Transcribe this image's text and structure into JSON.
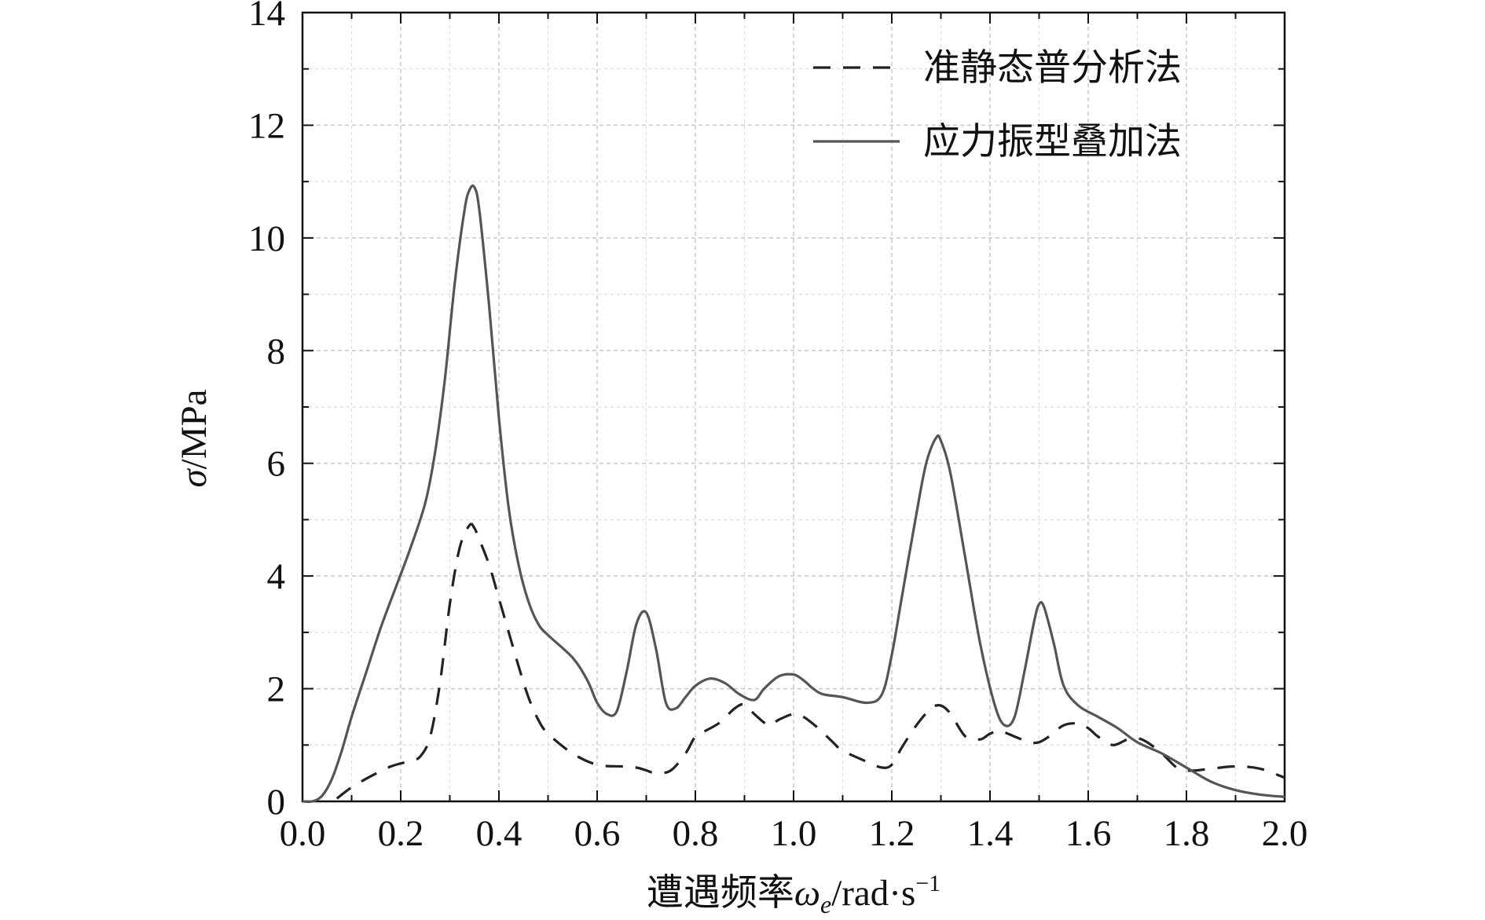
{
  "chart_data": {
    "type": "line",
    "xlabel": {
      "main": "遭遇频率",
      "symbol": "ω",
      "subscript": "e",
      "unit": "/rad·s",
      "unit_exp": "−1"
    },
    "ylabel": {
      "symbol": "σ",
      "unit": "/MPa"
    },
    "xlim": [
      0.0,
      2.0
    ],
    "ylim": [
      0,
      14
    ],
    "x_ticks": [
      "0.0",
      "0.2",
      "0.4",
      "0.6",
      "0.8",
      "1.0",
      "1.2",
      "1.4",
      "1.6",
      "1.8",
      "2.0"
    ],
    "y_ticks": [
      "0",
      "2",
      "4",
      "6",
      "8",
      "10",
      "12",
      "14"
    ],
    "grid": true,
    "legend_position": "top-right",
    "series": [
      {
        "name": "准静态普分析法",
        "style": "dashed",
        "color": "#222222",
        "x": [
          0.07,
          0.1,
          0.14,
          0.18,
          0.22,
          0.24,
          0.26,
          0.28,
          0.3,
          0.32,
          0.34,
          0.35,
          0.36,
          0.38,
          0.4,
          0.42,
          0.44,
          0.46,
          0.48,
          0.5,
          0.55,
          0.6,
          0.65,
          0.68,
          0.7,
          0.72,
          0.75,
          0.78,
          0.8,
          0.82,
          0.85,
          0.88,
          0.9,
          0.92,
          0.95,
          0.97,
          1.0,
          1.02,
          1.05,
          1.08,
          1.1,
          1.15,
          1.18,
          1.2,
          1.22,
          1.25,
          1.28,
          1.3,
          1.32,
          1.35,
          1.38,
          1.4,
          1.42,
          1.45,
          1.48,
          1.5,
          1.52,
          1.55,
          1.58,
          1.6,
          1.62,
          1.65,
          1.68,
          1.7,
          1.72,
          1.75,
          1.78,
          1.8,
          1.82,
          1.85,
          1.9,
          1.95,
          2.0
        ],
        "y": [
          0.05,
          0.25,
          0.45,
          0.62,
          0.72,
          0.8,
          1.15,
          2.1,
          3.5,
          4.5,
          4.9,
          4.85,
          4.65,
          4.2,
          3.6,
          3.0,
          2.4,
          1.85,
          1.45,
          1.2,
          0.85,
          0.65,
          0.62,
          0.6,
          0.55,
          0.5,
          0.55,
          0.85,
          1.15,
          1.25,
          1.4,
          1.65,
          1.72,
          1.55,
          1.35,
          1.45,
          1.55,
          1.5,
          1.3,
          1.05,
          0.9,
          0.7,
          0.6,
          0.65,
          0.95,
          1.35,
          1.65,
          1.7,
          1.55,
          1.15,
          1.1,
          1.2,
          1.25,
          1.15,
          1.05,
          1.05,
          1.15,
          1.35,
          1.38,
          1.3,
          1.15,
          1.0,
          1.1,
          1.12,
          1.05,
          0.85,
          0.6,
          0.55,
          0.55,
          0.58,
          0.62,
          0.58,
          0.42
        ]
      },
      {
        "name": "应力振型叠加法",
        "style": "solid",
        "color": "#555555",
        "x": [
          0.0,
          0.02,
          0.04,
          0.06,
          0.08,
          0.1,
          0.13,
          0.16,
          0.19,
          0.22,
          0.25,
          0.27,
          0.29,
          0.31,
          0.33,
          0.34,
          0.35,
          0.36,
          0.38,
          0.4,
          0.42,
          0.44,
          0.46,
          0.48,
          0.5,
          0.55,
          0.58,
          0.6,
          0.62,
          0.64,
          0.66,
          0.68,
          0.7,
          0.72,
          0.74,
          0.76,
          0.78,
          0.8,
          0.83,
          0.86,
          0.89,
          0.92,
          0.94,
          0.97,
          1.0,
          1.02,
          1.04,
          1.06,
          1.1,
          1.15,
          1.18,
          1.2,
          1.22,
          1.25,
          1.27,
          1.29,
          1.3,
          1.32,
          1.35,
          1.38,
          1.41,
          1.43,
          1.45,
          1.47,
          1.49,
          1.5,
          1.51,
          1.53,
          1.55,
          1.58,
          1.62,
          1.66,
          1.7,
          1.75,
          1.8,
          1.85,
          1.9,
          1.95,
          2.0
        ],
        "y": [
          0.0,
          0.0,
          0.1,
          0.4,
          0.9,
          1.5,
          2.3,
          3.1,
          3.8,
          4.5,
          5.3,
          6.2,
          7.5,
          9.2,
          10.5,
          10.85,
          10.9,
          10.5,
          8.8,
          6.8,
          5.2,
          4.2,
          3.55,
          3.15,
          2.95,
          2.55,
          2.15,
          1.75,
          1.55,
          1.6,
          2.3,
          3.15,
          3.35,
          2.7,
          1.75,
          1.65,
          1.85,
          2.05,
          2.18,
          2.1,
          1.9,
          1.8,
          2.0,
          2.22,
          2.25,
          2.15,
          2.0,
          1.9,
          1.85,
          1.75,
          1.9,
          2.6,
          3.6,
          5.1,
          6.0,
          6.45,
          6.4,
          5.8,
          4.3,
          2.8,
          1.7,
          1.35,
          1.5,
          2.3,
          3.2,
          3.5,
          3.45,
          2.8,
          2.05,
          1.7,
          1.5,
          1.3,
          1.05,
          0.85,
          0.6,
          0.35,
          0.2,
          0.12,
          0.08
        ]
      }
    ]
  }
}
